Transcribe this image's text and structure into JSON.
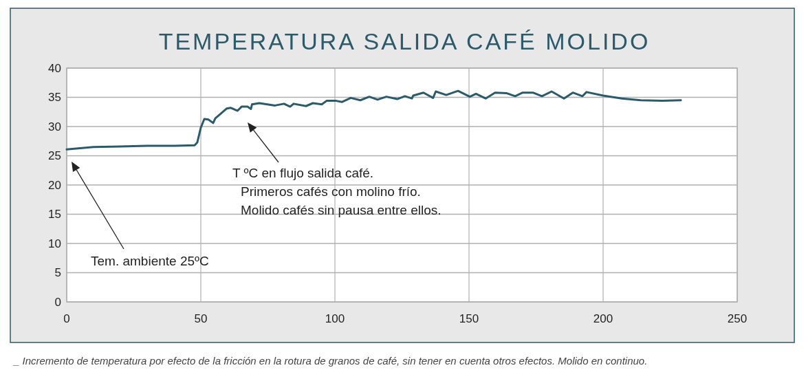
{
  "chart_data": {
    "type": "line",
    "title": "TEMPERATURA SALIDA CAFÉ MOLIDO",
    "series": [
      {
        "color": "#2b5a6b",
        "x": [
          0,
          10,
          20,
          30,
          40,
          47.7,
          48.7,
          50,
          51.3,
          52.8,
          54.6,
          55.4,
          59.7,
          61.2,
          63.7,
          65.2,
          67.4,
          68.7,
          69.1,
          71.8,
          77.7,
          81,
          83.3,
          84.6,
          89.2,
          91.8,
          95.1,
          96.9,
          100.5,
          102.6,
          105.9,
          109.5,
          112.8,
          115.9,
          119.2,
          123.2,
          126.1,
          128.7,
          129.2,
          133,
          136.6,
          137.6,
          141.5,
          145.9,
          150.3,
          152.6,
          156.2,
          159.7,
          164.1,
          167.2,
          170,
          173.8,
          177.2,
          180.8,
          185.4,
          188.7,
          192.3,
          193.8,
          200,
          207,
          214,
          222,
          229
        ],
        "values": [
          26.1,
          26.5,
          26.6,
          26.7,
          26.7,
          26.8,
          27.3,
          29.8,
          31.3,
          31.2,
          30.6,
          31.4,
          33.1,
          33.2,
          32.7,
          33.4,
          33.4,
          33,
          33.8,
          34,
          33.6,
          33.9,
          33.4,
          33.9,
          33.5,
          34,
          33.8,
          34.4,
          34.4,
          34.2,
          34.9,
          34.5,
          35.1,
          34.6,
          35.1,
          34.7,
          35.2,
          34.8,
          35.3,
          35.8,
          34.9,
          36,
          35.4,
          36.1,
          35.1,
          35.6,
          34.8,
          35.8,
          35.7,
          35.2,
          35.8,
          35.8,
          35.2,
          36,
          34.8,
          35.8,
          35.2,
          35.9,
          35.3,
          34.8,
          34.5,
          34.4,
          34.5
        ]
      }
    ],
    "xlim": [
      0,
      250
    ],
    "xticks": [
      0,
      50,
      100,
      150,
      200,
      250
    ],
    "ylim": [
      0,
      40
    ],
    "yticks": [
      0,
      5,
      10,
      15,
      20,
      25,
      30,
      35,
      40
    ],
    "grid": true,
    "marker": "none",
    "line_style": "solid",
    "annotations": [
      "T ºC en flujo salida café.\nPrimeros cafés con molino frío.\nMolido cafés sin pausa entre ellos.",
      "Tem. ambiente 25ºC",
      "_ Incremento de temperatura por efecto de la fricción en la rotura de granos de café, sin tener en cuenta otros efectos. Molido en continuo."
    ]
  }
}
